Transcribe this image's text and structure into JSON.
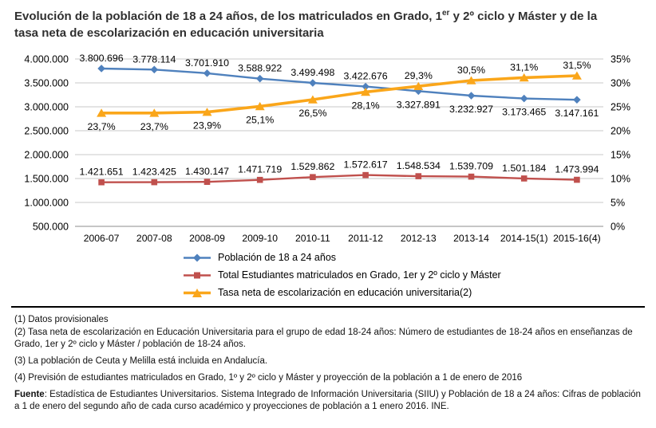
{
  "title": {
    "line1_pre": "Evolución de la población de 18 a 24 años, de los matriculados en Grado, 1",
    "line1_sup": "er",
    "line1_post": " y 2º ciclo y Máster y de la",
    "line2": "tasa neta de escolarización en educación universitaria"
  },
  "chart_data": {
    "type": "line",
    "grid": true,
    "legend_position": "bottom",
    "categories": [
      "2006-07",
      "2007-08",
      "2008-09",
      "2009-10",
      "2010-11",
      "2011-12",
      "2012-13",
      "2013-14",
      "2014-15(1)",
      "2015-16(4)"
    ],
    "series": [
      {
        "name": "Población de 18 a 24 años",
        "axis": "left",
        "marker": "diamond",
        "color": "#4F81BD",
        "values": [
          3800696,
          3778114,
          3701910,
          3588922,
          3499498,
          3422676,
          3327891,
          3232927,
          3173465,
          3147161
        ],
        "labels": [
          "3.800.696",
          "3.778.114",
          "3.701.910",
          "3.588.922",
          "3.499.498",
          "3.422.676",
          "3.327.891",
          "3.232.927",
          "3.173.465",
          "3.147.161"
        ]
      },
      {
        "name": "Total Estudiantes matriculados en Grado, 1er y 2º ciclo y Máster",
        "axis": "left",
        "marker": "square",
        "color": "#C0504D",
        "values": [
          1421651,
          1423425,
          1430147,
          1471719,
          1529862,
          1572617,
          1548534,
          1539709,
          1501184,
          1473994
        ],
        "labels": [
          "1.421.651",
          "1.423.425",
          "1.430.147",
          "1.471.719",
          "1.529.862",
          "1.572.617",
          "1.548.534",
          "1.539.709",
          "1.501.184",
          "1.473.994"
        ]
      },
      {
        "name": "Tasa neta de escolarización en educación universitaria(2)",
        "axis": "right",
        "marker": "triangle",
        "color": "#FAA61A",
        "values": [
          23.7,
          23.7,
          23.9,
          25.1,
          26.5,
          28.1,
          29.3,
          30.5,
          31.1,
          31.5
        ],
        "labels": [
          "23,7%",
          "23,7%",
          "23,9%",
          "25,1%",
          "26,5%",
          "28,1%",
          "29,3%",
          "30,5%",
          "31,1%",
          "31,5%"
        ]
      }
    ],
    "left_axis": {
      "min": 500000,
      "max": 4000000,
      "step": 500000,
      "tick_labels": [
        "500.000",
        "1.000.000",
        "1.500.000",
        "2.000.000",
        "2.500.000",
        "3.000.000",
        "3.500.000",
        "4.000.000"
      ]
    },
    "right_axis": {
      "min": 0,
      "max": 35,
      "step": 5,
      "suffix": "%",
      "tick_labels": [
        "0%",
        "5%",
        "10%",
        "15%",
        "20%",
        "25%",
        "30%",
        "35%"
      ]
    }
  },
  "footnotes": {
    "items": [
      "(1) Datos provisionales",
      "(2) Tasa neta de escolarización en Educación Universitaria para el grupo de edad 18-24 años: Número de estudiantes de 18-24 años en enseñanzas de Grado, 1er y 2º ciclo y Máster / población de 18-24 años.",
      "(3) La población de Ceuta y Melilla está incluida en Andalucía.",
      "(4) Previsión de estudiantes matriculados en Grado, 1º y 2º ciclo y Máster y proyección de la población a 1 de enero de 2016"
    ],
    "fuente_label": "Fuente",
    "fuente_text": ": Estadística de Estudiantes Universitarios. Sistema Integrado de Información Universitaria (SIIU) y Población de 18 a 24 años: Cifras de población a 1 de enero del segundo año de cada curso académico y proyecciones de población a 1 enero 2016. INE."
  }
}
